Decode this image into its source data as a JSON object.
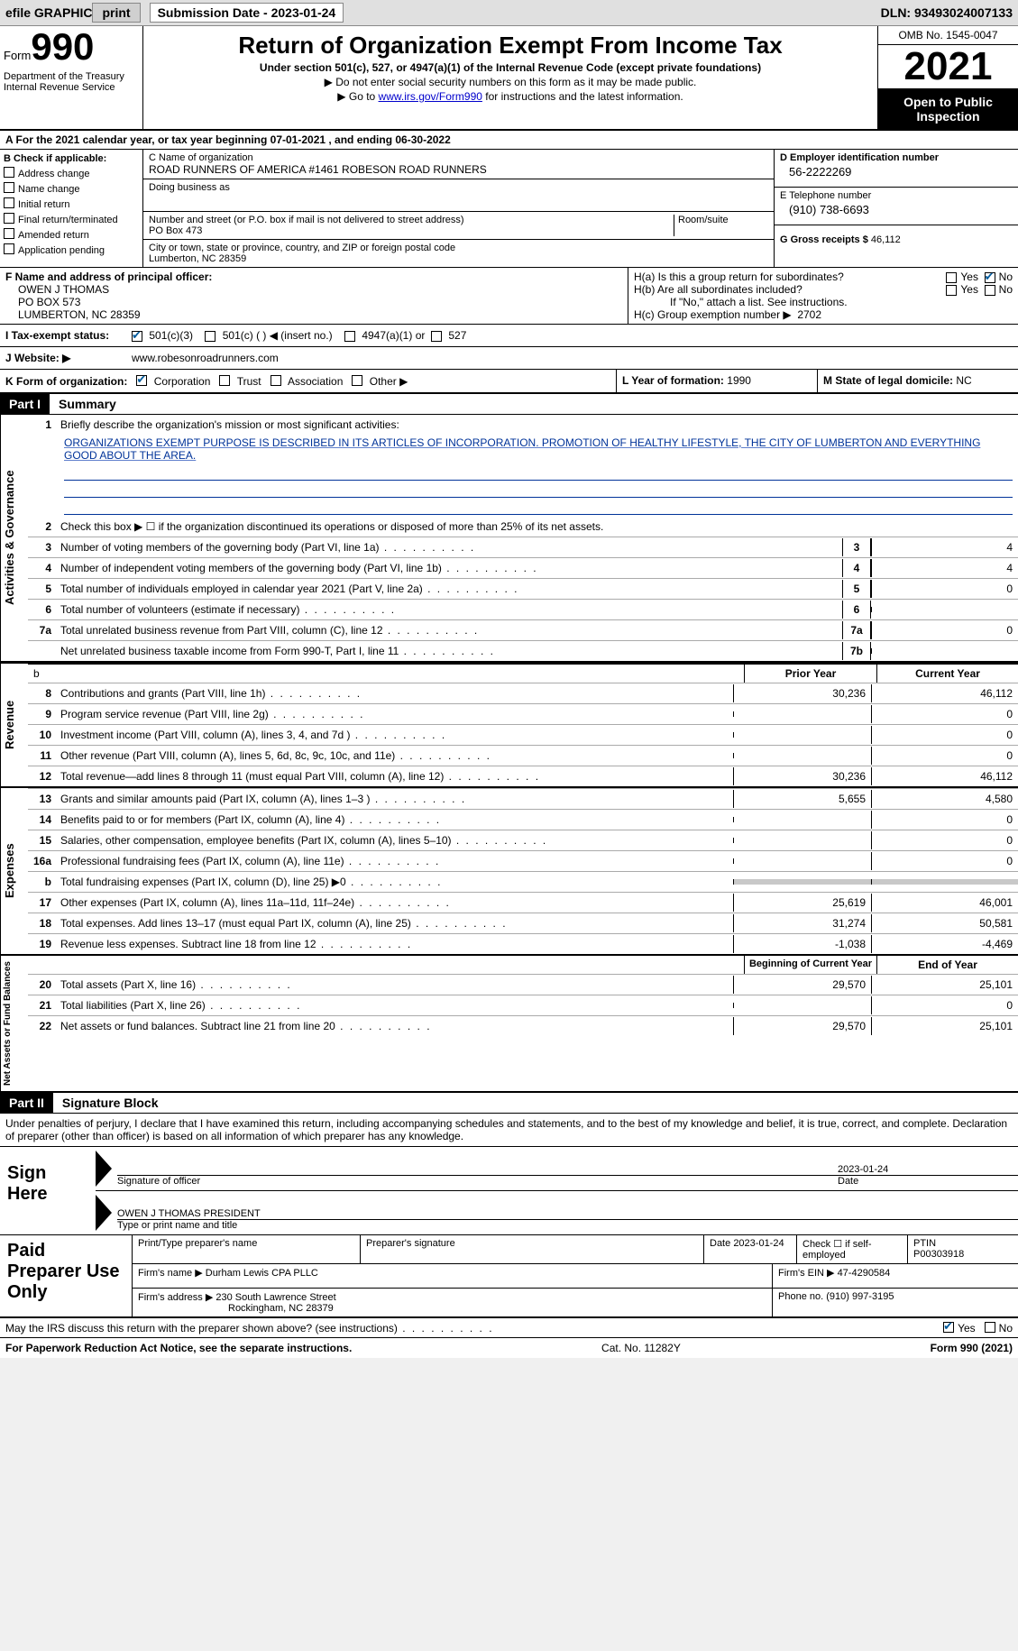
{
  "topbar": {
    "efile": "efile GRAPHIC",
    "print": "print",
    "submission": "Submission Date - 2023-01-24",
    "dln": "DLN: 93493024007133"
  },
  "header": {
    "form_label": "Form",
    "form_number": "990",
    "dept": "Department of the Treasury Internal Revenue Service",
    "title": "Return of Organization Exempt From Income Tax",
    "subtitle": "Under section 501(c), 527, or 4947(a)(1) of the Internal Revenue Code (except private foundations)",
    "instr1": "▶ Do not enter social security numbers on this form as it may be made public.",
    "instr2_pre": "▶ Go to ",
    "instr2_link": "www.irs.gov/Form990",
    "instr2_post": " for instructions and the latest information.",
    "omb": "OMB No. 1545-0047",
    "year": "2021",
    "inspection1": "Open to Public",
    "inspection2": "Inspection"
  },
  "a_line": "A For the 2021 calendar year, or tax year beginning 07-01-2021   , and ending 06-30-2022",
  "b": {
    "label": "B Check if applicable:",
    "items": [
      "Address change",
      "Name change",
      "Initial return",
      "Final return/terminated",
      "Amended return",
      "Application pending"
    ]
  },
  "c": {
    "name_label": "C Name of organization",
    "name": "ROAD RUNNERS OF AMERICA #1461 ROBESON ROAD RUNNERS",
    "dba_label": "Doing business as",
    "addr_label": "Number and street (or P.O. box if mail is not delivered to street address)",
    "room_label": "Room/suite",
    "addr": "PO Box 473",
    "city_label": "City or town, state or province, country, and ZIP or foreign postal code",
    "city": "Lumberton, NC  28359"
  },
  "d": {
    "ein_label": "D Employer identification number",
    "ein": "56-2222269",
    "phone_label": "E Telephone number",
    "phone": "(910) 738-6693",
    "gross_label": "G Gross receipts $",
    "gross": "46,112"
  },
  "f": {
    "label": "F  Name and address of principal officer:",
    "l1": "OWEN J THOMAS",
    "l2": "PO BOX 573",
    "l3": "LUMBERTON, NC  28359"
  },
  "h": {
    "a_label": "H(a)  Is this a group return for subordinates?",
    "b_label": "H(b)  Are all subordinates included?",
    "b_note": "If \"No,\" attach a list. See instructions.",
    "c_label": "H(c)  Group exemption number ▶",
    "c_val": "2702",
    "yes": "Yes",
    "no": "No"
  },
  "i": {
    "label": "I   Tax-exempt status:",
    "opt1": "501(c)(3)",
    "opt2": "501(c) (  ) ◀ (insert no.)",
    "opt3": "4947(a)(1) or",
    "opt4": "527"
  },
  "j": {
    "label": "J   Website: ▶",
    "val": "www.robesonroadrunners.com"
  },
  "k": {
    "label": "K Form of organization:",
    "opts": [
      "Corporation",
      "Trust",
      "Association",
      "Other ▶"
    ]
  },
  "l": {
    "label": "L Year of formation:",
    "val": "1990"
  },
  "m": {
    "label": "M State of legal domicile:",
    "val": "NC"
  },
  "part1": {
    "label": "Part I",
    "title": "Summary"
  },
  "gov": {
    "side": "Activities & Governance",
    "l1": "Briefly describe the organization's mission or most significant activities:",
    "mission": "ORGANIZATIONS EXEMPT PURPOSE IS DESCRIBED IN ITS ARTICLES OF INCORPORATION. PROMOTION OF HEALTHY LIFESTYLE, THE CITY OF LUMBERTON AND EVERYTHING GOOD ABOUT THE AREA.",
    "l2": "Check this box ▶ ☐  if the organization discontinued its operations or disposed of more than 25% of its net assets.",
    "rows": [
      {
        "n": "3",
        "d": "Number of voting members of the governing body (Part VI, line 1a)",
        "box": "3",
        "v": "4"
      },
      {
        "n": "4",
        "d": "Number of independent voting members of the governing body (Part VI, line 1b)",
        "box": "4",
        "v": "4"
      },
      {
        "n": "5",
        "d": "Total number of individuals employed in calendar year 2021 (Part V, line 2a)",
        "box": "5",
        "v": "0"
      },
      {
        "n": "6",
        "d": "Total number of volunteers (estimate if necessary)",
        "box": "6",
        "v": ""
      },
      {
        "n": "7a",
        "d": "Total unrelated business revenue from Part VIII, column (C), line 12",
        "box": "7a",
        "v": "0"
      },
      {
        "n": "",
        "d": "Net unrelated business taxable income from Form 990-T, Part I, line 11",
        "box": "7b",
        "v": ""
      }
    ]
  },
  "rev": {
    "side": "Revenue",
    "header_prior": "Prior Year",
    "header_curr": "Current Year",
    "rows": [
      {
        "n": "8",
        "d": "Contributions and grants (Part VIII, line 1h)",
        "p": "30,236",
        "c": "46,112"
      },
      {
        "n": "9",
        "d": "Program service revenue (Part VIII, line 2g)",
        "p": "",
        "c": "0"
      },
      {
        "n": "10",
        "d": "Investment income (Part VIII, column (A), lines 3, 4, and 7d )",
        "p": "",
        "c": "0"
      },
      {
        "n": "11",
        "d": "Other revenue (Part VIII, column (A), lines 5, 6d, 8c, 9c, 10c, and 11e)",
        "p": "",
        "c": "0"
      },
      {
        "n": "12",
        "d": "Total revenue—add lines 8 through 11 (must equal Part VIII, column (A), line 12)",
        "p": "30,236",
        "c": "46,112"
      }
    ]
  },
  "exp": {
    "side": "Expenses",
    "rows": [
      {
        "n": "13",
        "d": "Grants and similar amounts paid (Part IX, column (A), lines 1–3 )",
        "p": "5,655",
        "c": "4,580"
      },
      {
        "n": "14",
        "d": "Benefits paid to or for members (Part IX, column (A), line 4)",
        "p": "",
        "c": "0"
      },
      {
        "n": "15",
        "d": "Salaries, other compensation, employee benefits (Part IX, column (A), lines 5–10)",
        "p": "",
        "c": "0"
      },
      {
        "n": "16a",
        "d": "Professional fundraising fees (Part IX, column (A), line 11e)",
        "p": "",
        "c": "0"
      },
      {
        "n": "b",
        "d": "Total fundraising expenses (Part IX, column (D), line 25) ▶0",
        "p": "shaded",
        "c": "shaded"
      },
      {
        "n": "17",
        "d": "Other expenses (Part IX, column (A), lines 11a–11d, 11f–24e)",
        "p": "25,619",
        "c": "46,001"
      },
      {
        "n": "18",
        "d": "Total expenses. Add lines 13–17 (must equal Part IX, column (A), line 25)",
        "p": "31,274",
        "c": "50,581"
      },
      {
        "n": "19",
        "d": "Revenue less expenses. Subtract line 18 from line 12",
        "p": "-1,038",
        "c": "-4,469"
      }
    ]
  },
  "net": {
    "side": "Net Assets or Fund Balances",
    "header_prior": "Beginning of Current Year",
    "header_curr": "End of Year",
    "rows": [
      {
        "n": "20",
        "d": "Total assets (Part X, line 16)",
        "p": "29,570",
        "c": "25,101"
      },
      {
        "n": "21",
        "d": "Total liabilities (Part X, line 26)",
        "p": "",
        "c": "0"
      },
      {
        "n": "22",
        "d": "Net assets or fund balances. Subtract line 21 from line 20",
        "p": "29,570",
        "c": "25,101"
      }
    ]
  },
  "part2": {
    "label": "Part II",
    "title": "Signature Block",
    "text": "Under penalties of perjury, I declare that I have examined this return, including accompanying schedules and statements, and to the best of my knowledge and belief, it is true, correct, and complete. Declaration of preparer (other than officer) is based on all information of which preparer has any knowledge."
  },
  "sign": {
    "here": "Sign Here",
    "sig_label": "Signature of officer",
    "date_label": "Date",
    "date": "2023-01-24",
    "name": "OWEN J THOMAS PRESIDENT",
    "name_label": "Type or print name and title"
  },
  "paid": {
    "left": "Paid Preparer Use Only",
    "c1": "Print/Type preparer's name",
    "c2": "Preparer's signature",
    "c3_label": "Date",
    "c3": "2023-01-24",
    "c4_label": "Check ☐ if self-employed",
    "c5_label": "PTIN",
    "c5": "P00303918",
    "firm_label": "Firm's name    ▶",
    "firm": "Durham Lewis CPA PLLC",
    "ein_label": "Firm's EIN ▶",
    "ein": "47-4290584",
    "addr_label": "Firm's address ▶",
    "addr1": "230 South Lawrence Street",
    "addr2": "Rockingham, NC  28379",
    "phone_label": "Phone no.",
    "phone": "(910) 997-3195"
  },
  "discuss": {
    "text": "May the IRS discuss this return with the preparer shown above? (see instructions)",
    "yes": "Yes",
    "no": "No"
  },
  "footer": {
    "l": "For Paperwork Reduction Act Notice, see the separate instructions.",
    "c": "Cat. No. 11282Y",
    "r": "Form 990 (2021)"
  }
}
